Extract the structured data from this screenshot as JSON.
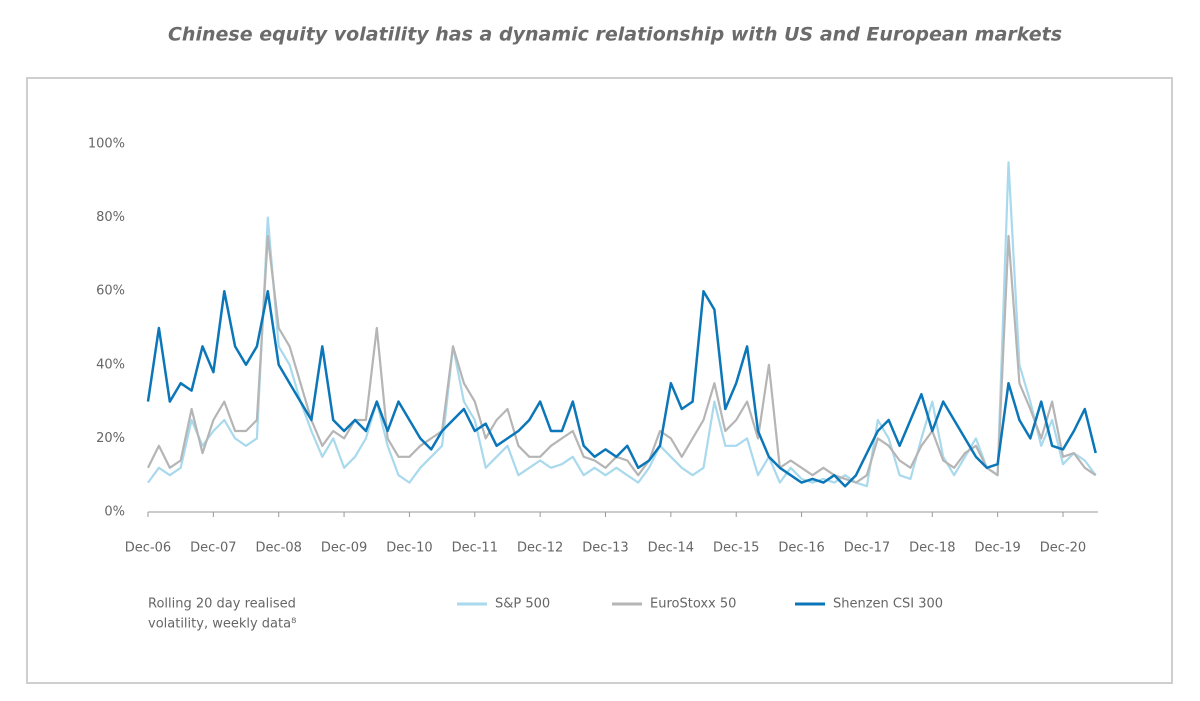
{
  "chart_data": {
    "type": "line",
    "title": "Chinese equity volatility has a dynamic relationship with US and European markets",
    "note": [
      "Rolling 20 day realised",
      "volatility, weekly data⁸"
    ],
    "categories": [
      "Dec-06",
      null,
      null,
      null,
      null,
      null,
      "Dec-07",
      null,
      null,
      null,
      null,
      null,
      "Dec-08",
      null,
      null,
      null,
      null,
      null,
      "Dec-09",
      null,
      null,
      null,
      null,
      null,
      "Dec-10",
      null,
      null,
      null,
      null,
      null,
      "Dec-11",
      null,
      null,
      null,
      null,
      null,
      "Dec-12",
      null,
      null,
      null,
      null,
      null,
      "Dec-13",
      null,
      null,
      null,
      null,
      null,
      "Dec-14",
      null,
      null,
      null,
      null,
      null,
      "Dec-15",
      null,
      null,
      null,
      null,
      null,
      "Dec-16",
      null,
      null,
      null,
      null,
      null,
      "Dec-17",
      null,
      null,
      null,
      null,
      null,
      "Dec-18",
      null,
      null,
      null,
      null,
      null,
      "Dec-19",
      null,
      null,
      null,
      null,
      null,
      "Dec-20",
      null,
      null,
      null
    ],
    "ylim": [
      0,
      100
    ],
    "yticks": [
      {
        "value": 0,
        "label": "0%"
      },
      {
        "value": 20,
        "label": "20%"
      },
      {
        "value": 40,
        "label": "40%"
      },
      {
        "value": 60,
        "label": "60%"
      },
      {
        "value": 80,
        "label": "80%"
      },
      {
        "value": 100,
        "label": "100%"
      }
    ],
    "grid": false,
    "legend": "bottom",
    "series": [
      {
        "name": "S&P 500",
        "color": "#a9d9ec",
        "values": [
          8,
          12,
          10,
          12,
          25,
          18,
          22,
          25,
          20,
          18,
          20,
          80,
          45,
          40,
          30,
          22,
          15,
          20,
          12,
          15,
          20,
          30,
          18,
          10,
          8,
          12,
          15,
          18,
          45,
          30,
          25,
          12,
          15,
          18,
          10,
          12,
          14,
          12,
          13,
          15,
          10,
          12,
          10,
          12,
          10,
          8,
          12,
          18,
          15,
          12,
          10,
          12,
          30,
          18,
          18,
          20,
          10,
          15,
          8,
          12,
          9,
          8,
          9,
          8,
          10,
          8,
          7,
          25,
          20,
          10,
          9,
          20,
          30,
          15,
          10,
          15,
          20,
          12,
          10,
          95,
          40,
          30,
          18,
          25,
          13,
          16,
          14,
          10
        ]
      },
      {
        "name": "EuroStoxx 50",
        "color": "#b5b5b5",
        "values": [
          12,
          18,
          12,
          14,
          28,
          16,
          25,
          30,
          22,
          22,
          25,
          75,
          50,
          45,
          35,
          25,
          18,
          22,
          20,
          25,
          25,
          50,
          20,
          15,
          15,
          18,
          20,
          22,
          45,
          35,
          30,
          20,
          25,
          28,
          18,
          15,
          15,
          18,
          20,
          22,
          15,
          14,
          12,
          15,
          14,
          10,
          14,
          22,
          20,
          15,
          20,
          25,
          35,
          22,
          25,
          30,
          20,
          40,
          12,
          14,
          12,
          10,
          12,
          10,
          9,
          8,
          10,
          20,
          18,
          14,
          12,
          18,
          22,
          14,
          12,
          16,
          18,
          12,
          10,
          75,
          35,
          28,
          20,
          30,
          15,
          16,
          12,
          10
        ]
      },
      {
        "name": "Shenzen CSI 300",
        "color": "#0b76b8",
        "values": [
          30,
          50,
          30,
          35,
          33,
          45,
          38,
          60,
          45,
          40,
          45,
          60,
          40,
          35,
          30,
          25,
          45,
          25,
          22,
          25,
          22,
          30,
          22,
          30,
          25,
          20,
          17,
          22,
          25,
          28,
          22,
          24,
          18,
          20,
          22,
          25,
          30,
          22,
          22,
          30,
          18,
          15,
          17,
          15,
          18,
          12,
          14,
          18,
          35,
          28,
          30,
          60,
          55,
          28,
          35,
          45,
          22,
          15,
          12,
          10,
          8,
          9,
          8,
          10,
          7,
          10,
          16,
          22,
          25,
          18,
          25,
          32,
          22,
          30,
          25,
          20,
          15,
          12,
          13,
          35,
          25,
          20,
          30,
          18,
          17,
          22,
          28,
          16
        ]
      }
    ]
  }
}
